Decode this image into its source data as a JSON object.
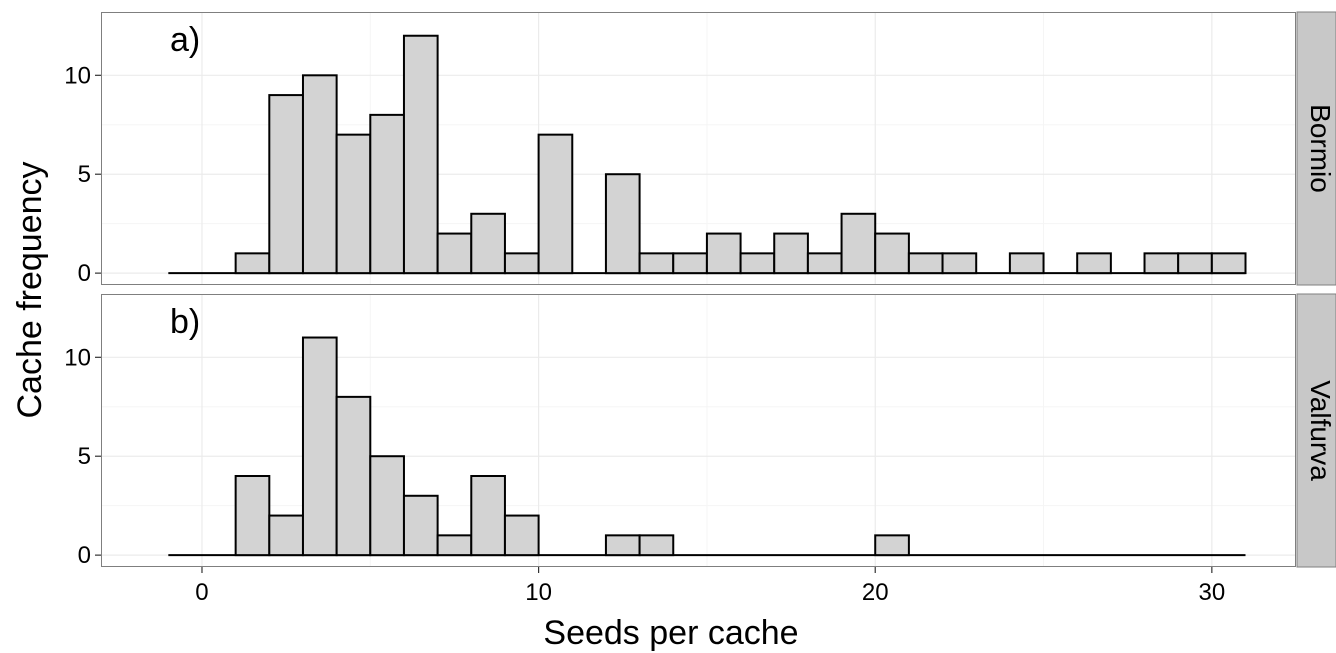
{
  "chart_data": {
    "type": "bar",
    "xlabel": "Seeds per cache",
    "ylabel": "Cache frequency",
    "xlim": [
      -3,
      32.5
    ],
    "ylim": [
      -0.6,
      13.2
    ],
    "x_ticks": [
      0,
      10,
      20,
      30
    ],
    "y_ticks": [
      0,
      5,
      10
    ],
    "grid": true,
    "bin_width": 1,
    "baseline_range": [
      -1,
      31
    ],
    "panels": [
      {
        "label": "a)",
        "strip": "Bormio",
        "bins": [
          {
            "start": 1,
            "count": 1
          },
          {
            "start": 2,
            "count": 9
          },
          {
            "start": 3,
            "count": 10
          },
          {
            "start": 4,
            "count": 7
          },
          {
            "start": 5,
            "count": 8
          },
          {
            "start": 6,
            "count": 12
          },
          {
            "start": 7,
            "count": 2
          },
          {
            "start": 8,
            "count": 3
          },
          {
            "start": 9,
            "count": 1
          },
          {
            "start": 10,
            "count": 7
          },
          {
            "start": 12,
            "count": 5
          },
          {
            "start": 13,
            "count": 1
          },
          {
            "start": 14,
            "count": 1
          },
          {
            "start": 15,
            "count": 2
          },
          {
            "start": 16,
            "count": 1
          },
          {
            "start": 17,
            "count": 2
          },
          {
            "start": 18,
            "count": 1
          },
          {
            "start": 19,
            "count": 3
          },
          {
            "start": 20,
            "count": 2
          },
          {
            "start": 21,
            "count": 1
          },
          {
            "start": 22,
            "count": 1
          },
          {
            "start": 24,
            "count": 1
          },
          {
            "start": 26,
            "count": 1
          },
          {
            "start": 28,
            "count": 1
          },
          {
            "start": 29,
            "count": 1
          },
          {
            "start": 30,
            "count": 1
          }
        ]
      },
      {
        "label": "b)",
        "strip": "Valfurva",
        "bins": [
          {
            "start": 1,
            "count": 4
          },
          {
            "start": 2,
            "count": 2
          },
          {
            "start": 3,
            "count": 11
          },
          {
            "start": 4,
            "count": 8
          },
          {
            "start": 5,
            "count": 5
          },
          {
            "start": 6,
            "count": 3
          },
          {
            "start": 7,
            "count": 1
          },
          {
            "start": 8,
            "count": 4
          },
          {
            "start": 9,
            "count": 2
          },
          {
            "start": 12,
            "count": 1
          },
          {
            "start": 13,
            "count": 1
          },
          {
            "start": 20,
            "count": 1
          }
        ]
      }
    ],
    "colors": {
      "bar_fill": "#d3d3d3",
      "bar_stroke": "#000000",
      "strip_fill": "#c8c8c8",
      "grid_major": "#ebebeb",
      "grid_minor": "#f5f5f5",
      "panel_border": "#7f7f7f"
    }
  }
}
